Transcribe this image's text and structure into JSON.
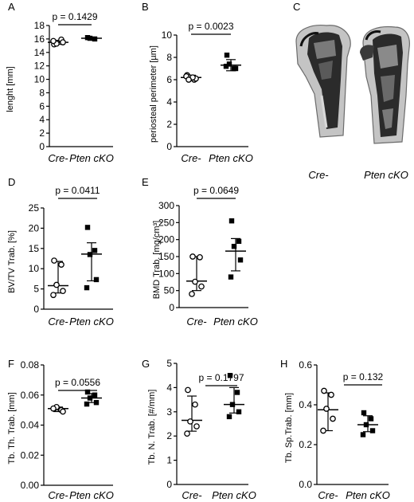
{
  "groups": [
    "Cre-",
    "Pten cKO"
  ],
  "photo_labels": {
    "letter": "C",
    "left": "Cre-",
    "right": "Pten cKO"
  },
  "chart_data": [
    {
      "type": "scatter",
      "letter": "A",
      "ylabel": "lenght [mm]",
      "ylim": [
        0,
        18
      ],
      "yticks": [
        0,
        2,
        4,
        6,
        8,
        10,
        12,
        14,
        16,
        18
      ],
      "decimals": 0,
      "pvalue": "p = 0.1429",
      "series": [
        {
          "name": "Cre-",
          "values": [
            15.2,
            15.9,
            15.3,
            15.5,
            15.7
          ],
          "mean": 15.5,
          "sd": 0.3,
          "marker": "open-circle"
        },
        {
          "name": "Pten cKO",
          "values": [
            16.2,
            16.0,
            16.1
          ],
          "mean": 16.1,
          "sd": 0.1,
          "marker": "filled-square"
        }
      ]
    },
    {
      "type": "scatter",
      "letter": "B",
      "ylabel": "periosteal perimeter [µm]",
      "ylim": [
        0,
        10
      ],
      "yticks": [
        0,
        2,
        4,
        6,
        8,
        10
      ],
      "decimals": 0,
      "pvalue": "p = 0.0023",
      "series": [
        {
          "name": "Cre-",
          "values": [
            6.4,
            6.0,
            6.2,
            6.1,
            6.3,
            6.2,
            6.0
          ],
          "mean": 6.2,
          "sd": 0.2,
          "marker": "open-circle"
        },
        {
          "name": "Pten cKO",
          "values": [
            8.2,
            7.0,
            7.4,
            7.0,
            7.2
          ],
          "mean": 7.3,
          "sd": 0.5,
          "marker": "filled-square"
        }
      ]
    },
    {
      "type": "scatter",
      "letter": "D",
      "ylabel": "BV/TV Trab. [%]",
      "ylim": [
        0,
        25
      ],
      "yticks": [
        0,
        5,
        10,
        15,
        20,
        25
      ],
      "decimals": 0,
      "pvalue": "p = 0.0411",
      "series": [
        {
          "name": "Cre-",
          "values": [
            12.0,
            11.0,
            6.0,
            4.5,
            3.5
          ],
          "median": 5.8,
          "q1": 4.0,
          "q3": 11.8,
          "marker": "open-circle"
        },
        {
          "name": "Pten cKO",
          "values": [
            20.2,
            14.5,
            13.5,
            7.3,
            5.3
          ],
          "median": 13.6,
          "q1": 7.0,
          "q3": 16.4,
          "marker": "filled-square"
        }
      ]
    },
    {
      "type": "scatter",
      "letter": "E",
      "ylabel": "BMD Trab. [mg/cm³]",
      "ylim": [
        0,
        300
      ],
      "yticks": [
        0,
        50,
        100,
        150,
        200,
        250,
        300
      ],
      "decimals": 0,
      "pvalue": "p = 0.0649",
      "series": [
        {
          "name": "Cre-",
          "values": [
            150,
            148,
            76,
            62,
            40
          ],
          "median": 78,
          "q1": 50,
          "q3": 150,
          "marker": "open-circle"
        },
        {
          "name": "Pten cKO",
          "values": [
            255,
            195,
            180,
            140,
            90
          ],
          "median": 166,
          "q1": 108,
          "q3": 203,
          "marker": "filled-square"
        }
      ]
    },
    {
      "type": "scatter",
      "letter": "F",
      "ylabel": "Tb. Th. Trab. [mm]",
      "ylim": [
        0,
        0.08
      ],
      "yticks": [
        0,
        0.02,
        0.04,
        0.06,
        0.08
      ],
      "decimals": 2,
      "pvalue": "p = 0.0556",
      "series": [
        {
          "name": "Cre-",
          "values": [
            0.051,
            0.05,
            0.052,
            0.049,
            0.051
          ],
          "median": 0.051,
          "q1": 0.049,
          "q3": 0.052,
          "marker": "open-circle"
        },
        {
          "name": "Pten cKO",
          "values": [
            0.062,
            0.06,
            0.058,
            0.055,
            0.054
          ],
          "median": 0.058,
          "q1": 0.055,
          "q3": 0.061,
          "marker": "filled-square"
        }
      ]
    },
    {
      "type": "scatter",
      "letter": "G",
      "ylabel": "Tb. N. Trab. [#/mm]",
      "ylim": [
        0,
        5
      ],
      "yticks": [
        0,
        1,
        2,
        3,
        4,
        5
      ],
      "decimals": 0,
      "pvalue": "p = 0.1797",
      "series": [
        {
          "name": "Cre-",
          "values": [
            3.9,
            3.3,
            2.6,
            2.4,
            2.1
          ],
          "median": 2.65,
          "q1": 2.2,
          "q3": 3.65,
          "marker": "open-circle"
        },
        {
          "name": "Pten cKO",
          "values": [
            4.5,
            3.8,
            3.3,
            3.0,
            2.8
          ],
          "median": 3.3,
          "q1": 2.95,
          "q3": 4.0,
          "marker": "filled-square"
        }
      ]
    },
    {
      "type": "scatter",
      "letter": "H",
      "ylabel": "Tb. Sp.Trab. [mm]",
      "ylim": [
        0,
        0.6
      ],
      "yticks": [
        0,
        0.2,
        0.4,
        0.6
      ],
      "decimals": 1,
      "pvalue": "p = 0.132",
      "series": [
        {
          "name": "Cre-",
          "values": [
            0.47,
            0.45,
            0.38,
            0.33,
            0.27
          ],
          "median": 0.375,
          "q1": 0.27,
          "q3": 0.46,
          "marker": "open-circle"
        },
        {
          "name": "Pten cKO",
          "values": [
            0.36,
            0.33,
            0.3,
            0.27,
            0.25
          ],
          "median": 0.3,
          "q1": 0.265,
          "q3": 0.345,
          "marker": "filled-square"
        }
      ]
    }
  ]
}
